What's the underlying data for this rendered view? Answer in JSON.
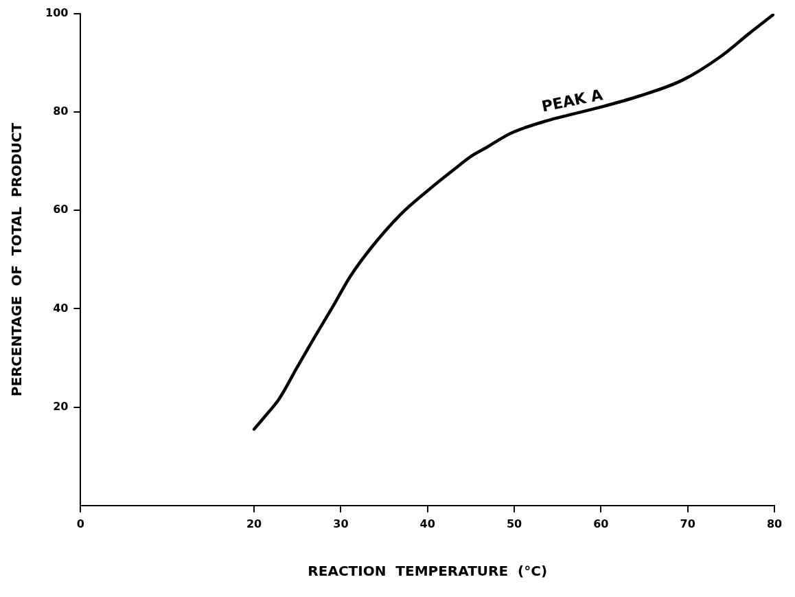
{
  "chart_data": {
    "type": "line",
    "xlabel": "REACTION  TEMPERATURE  (°C)",
    "ylabel": "PERCENTAGE  OF  TOTAL  PRODUCT",
    "xlim": [
      0,
      80
    ],
    "xticks": [
      0,
      20,
      30,
      40,
      50,
      60,
      70,
      80
    ],
    "ylim": [
      0,
      100
    ],
    "yticks": [
      20,
      40,
      60,
      80,
      100
    ],
    "grid": false,
    "legend": false,
    "marker": "none",
    "line_style": "solid",
    "annotations": [
      {
        "text": "PEAK A",
        "x": 57,
        "y": 79.5
      }
    ],
    "series": [
      {
        "color": "#000000",
        "x": [
          20,
          21.2,
          22.9,
          25,
          27,
          29.1,
          31.1,
          33.5,
          36.9,
          40,
          43.1,
          45.1,
          46.8,
          49.6,
          53.5,
          59.5,
          64.3,
          69.4,
          73.8,
          77.1,
          80
        ],
        "values": [
          15.5,
          18,
          21.7,
          28.2,
          34.3,
          40.5,
          46.6,
          52.4,
          59.2,
          64,
          68.4,
          71.1,
          72.8,
          75.7,
          78.1,
          80.8,
          83.2,
          86.5,
          91.3,
          96,
          100
        ]
      }
    ]
  }
}
